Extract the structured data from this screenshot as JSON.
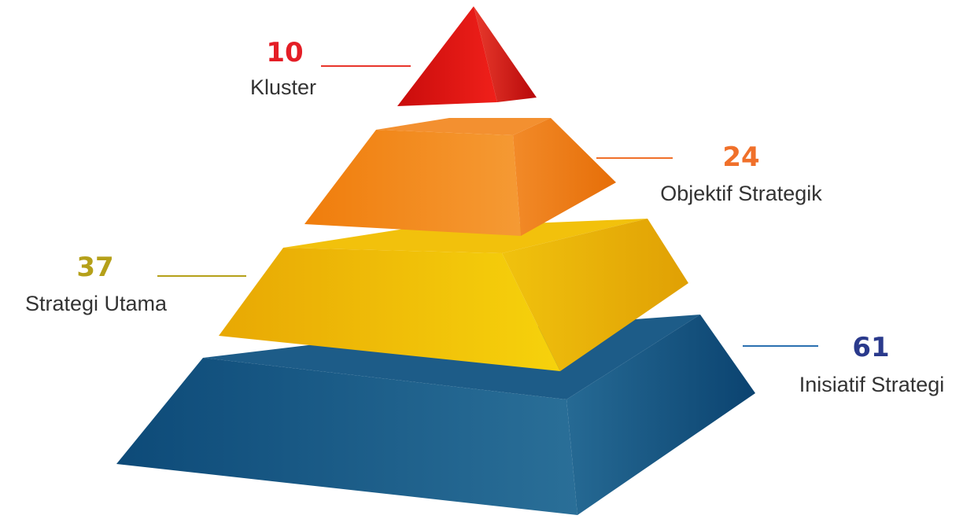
{
  "levels": [
    {
      "value": 10,
      "label": "Kluster"
    },
    {
      "value": 24,
      "label": "Objektif Strategik"
    },
    {
      "value": 37,
      "label": "Strategi Utama"
    },
    {
      "value": 61,
      "label": "Inisiatif Strategi"
    }
  ]
}
